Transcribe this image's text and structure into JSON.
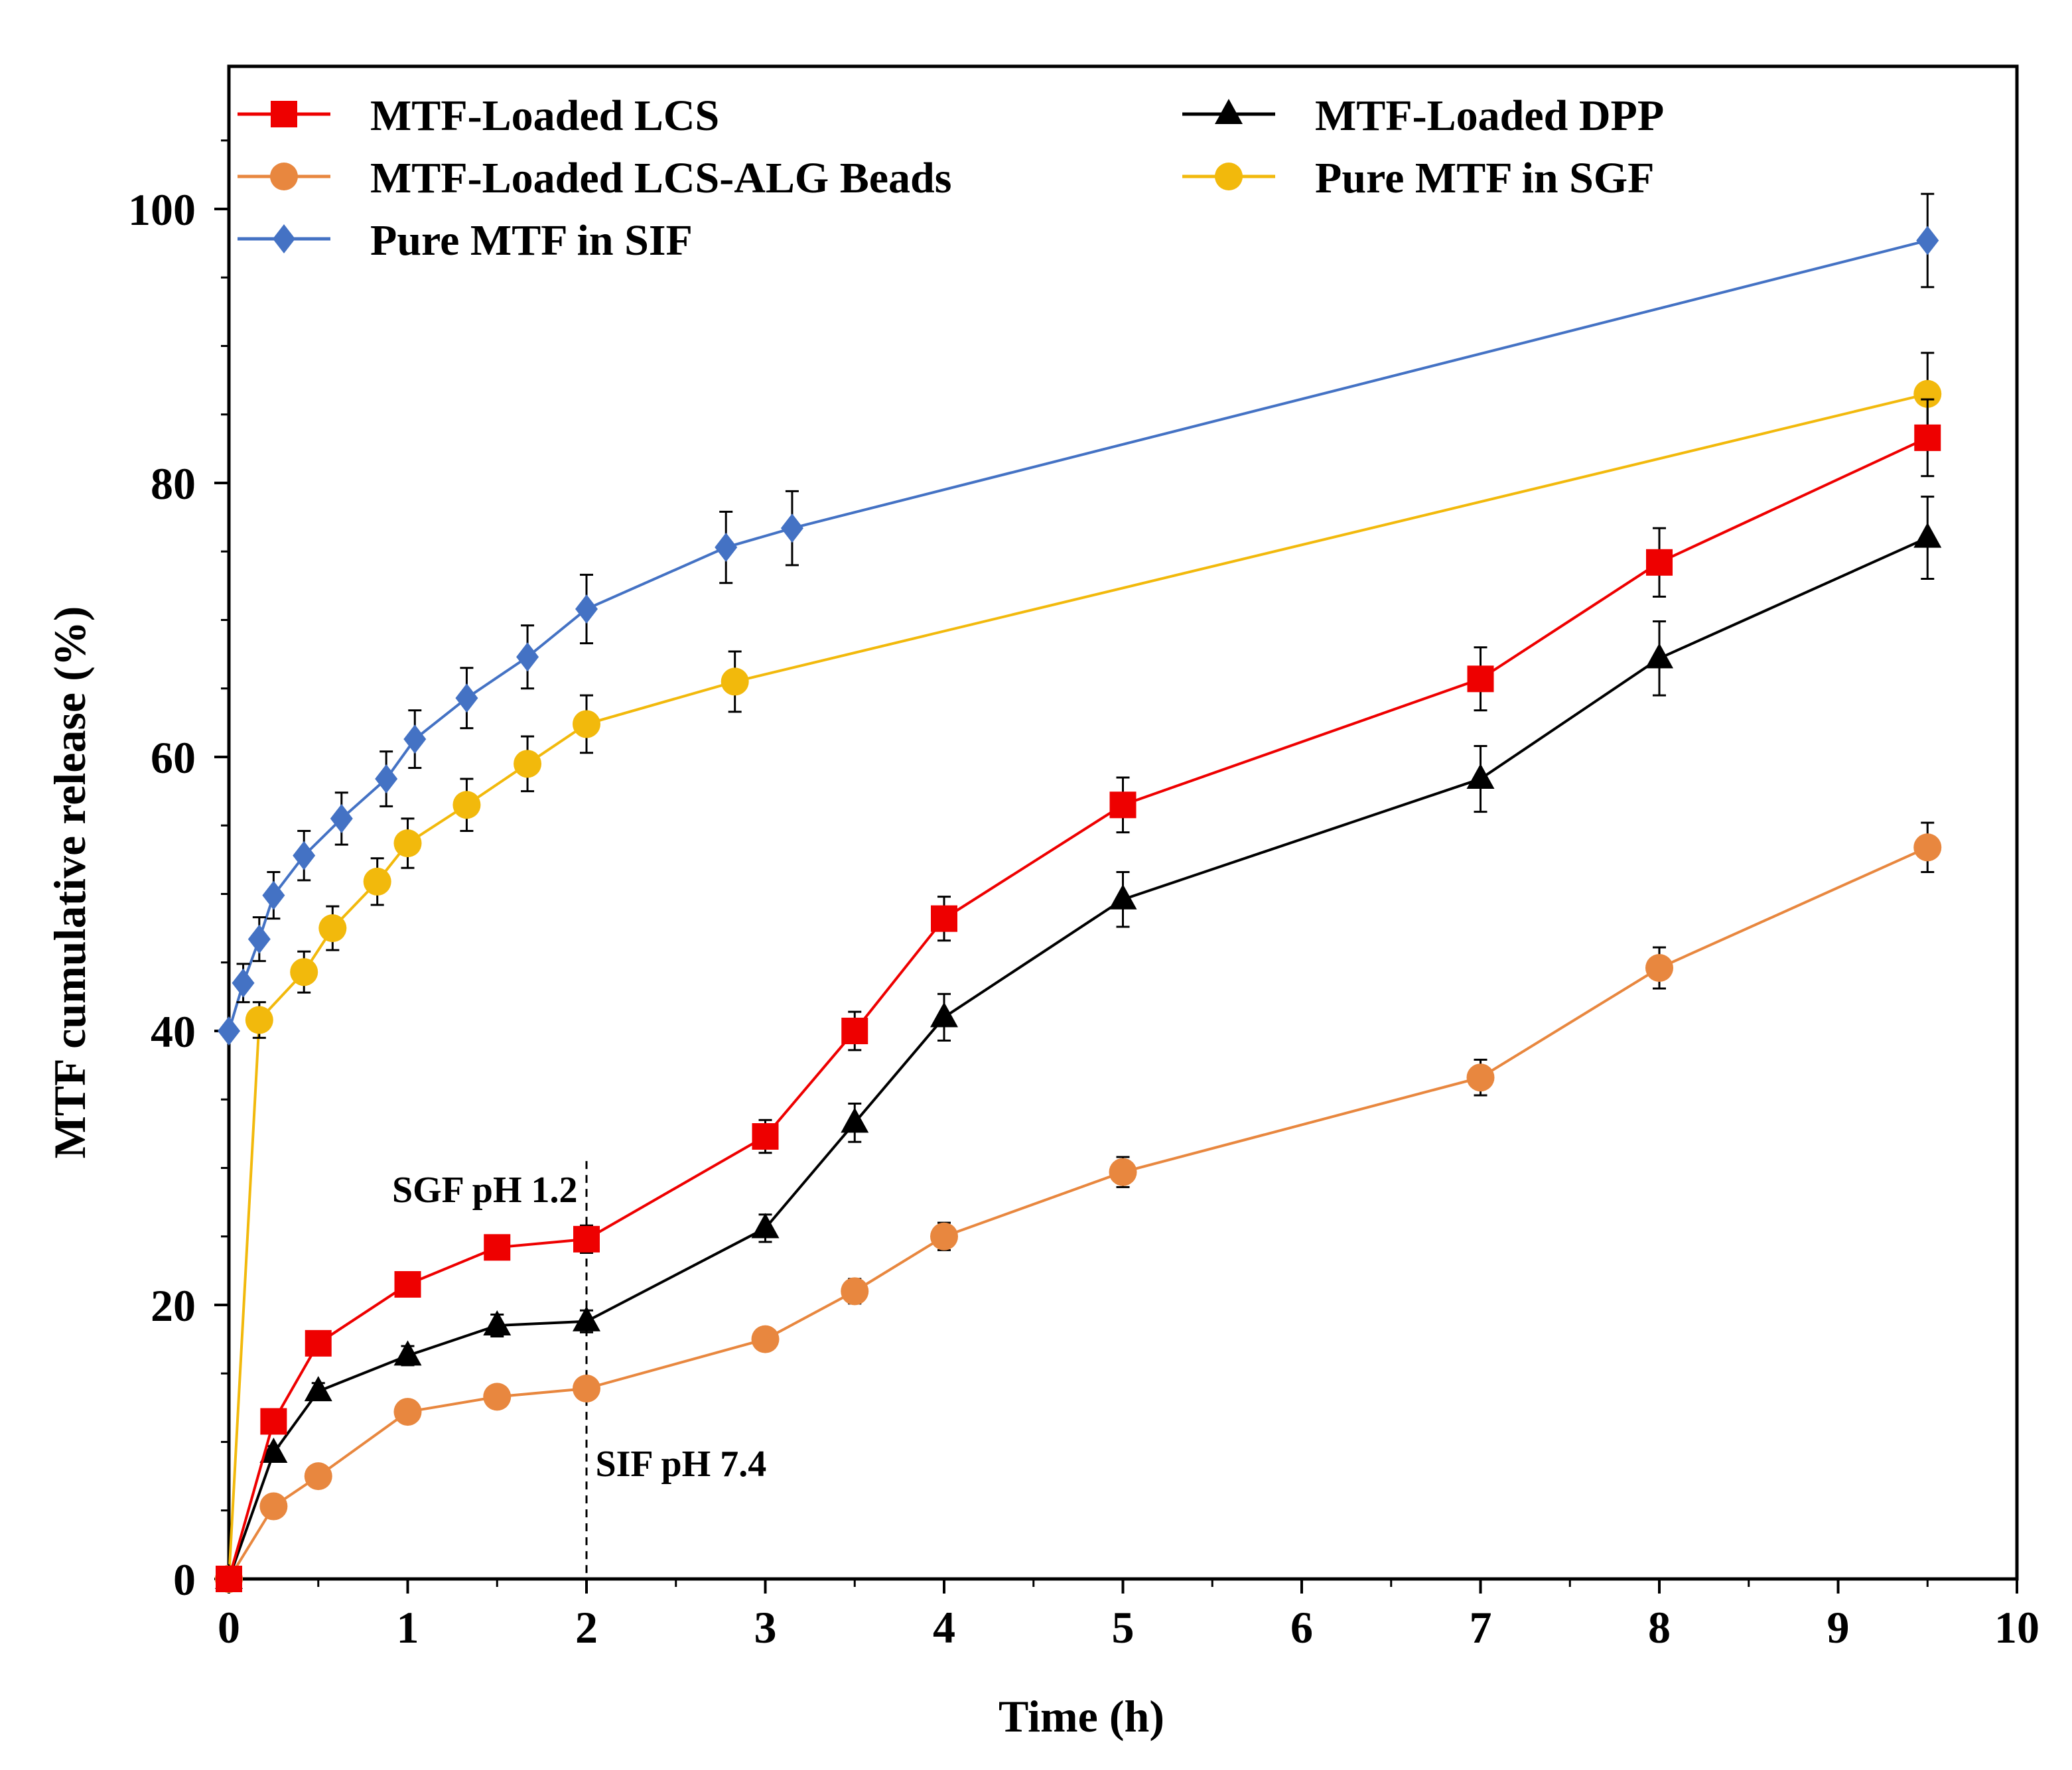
{
  "chart_data": {
    "type": "line",
    "title": "",
    "xlabel": "Time (h)",
    "ylabel": "MTF cumulative release (%)",
    "xlim": [
      0,
      10
    ],
    "ylim": [
      0,
      110
    ],
    "xticks": [
      0,
      1,
      2,
      3,
      4,
      5,
      6,
      7,
      8,
      9,
      10
    ],
    "yticks": [
      0,
      20,
      40,
      60,
      80,
      100
    ],
    "grid": false,
    "legend_position": "top",
    "series": [
      {
        "name": "MTF-Loaded LCS",
        "color": "#ee0000",
        "marker": "square",
        "x": [
          0,
          0.25,
          0.5,
          1,
          1.5,
          2,
          3,
          3.5,
          4,
          5,
          7,
          8,
          9.5
        ],
        "y": [
          0,
          11.5,
          17.2,
          21.5,
          24.2,
          24.8,
          32.3,
          40.0,
          48.2,
          56.5,
          65.7,
          74.2,
          83.3
        ],
        "err": [
          0,
          0.6,
          0.7,
          0.8,
          0.8,
          1.0,
          1.2,
          1.4,
          1.6,
          2.0,
          2.3,
          2.5,
          2.8
        ]
      },
      {
        "name": "MTF-Loaded DPP",
        "color": "#000000",
        "marker": "triangle",
        "x": [
          0,
          0.25,
          0.5,
          1,
          1.5,
          2,
          3,
          3.5,
          4,
          5,
          7,
          8,
          9.5
        ],
        "y": [
          0,
          9.2,
          13.7,
          16.3,
          18.5,
          18.8,
          25.6,
          33.3,
          41.0,
          49.6,
          58.4,
          67.2,
          76.0
        ],
        "err": [
          0,
          0.5,
          0.6,
          0.7,
          0.8,
          0.8,
          1.0,
          1.4,
          1.7,
          2.0,
          2.4,
          2.7,
          3.0
        ]
      },
      {
        "name": "MTF-Loaded LCS-ALG Beads",
        "color": "#e8873f",
        "marker": "circle",
        "x": [
          0,
          0.25,
          0.5,
          1,
          1.5,
          2,
          3,
          3.5,
          4,
          5,
          7,
          8,
          9.5
        ],
        "y": [
          0,
          5.3,
          7.5,
          12.2,
          13.3,
          13.9,
          17.5,
          21.0,
          25.0,
          29.7,
          36.6,
          44.6,
          53.4
        ],
        "err": [
          0,
          0.4,
          0.5,
          0.6,
          0.6,
          0.7,
          0.8,
          0.9,
          1.0,
          1.1,
          1.3,
          1.5,
          1.8
        ]
      },
      {
        "name": "Pure MTF in SGF",
        "color": "#f2b90c",
        "marker": "circle",
        "x": [
          0,
          0.17,
          0.42,
          0.58,
          0.83,
          1,
          1.33,
          1.67,
          2,
          2.83,
          9.5
        ],
        "y": [
          0,
          40.8,
          44.3,
          47.5,
          50.9,
          53.7,
          56.5,
          59.5,
          62.4,
          65.5,
          86.5
        ],
        "err": [
          0,
          1.3,
          1.5,
          1.6,
          1.7,
          1.8,
          1.9,
          2.0,
          2.1,
          2.2,
          3.0
        ]
      },
      {
        "name": "Pure MTF in SIF",
        "color": "#4472c4",
        "marker": "diamond",
        "x": [
          0,
          0.08,
          0.17,
          0.25,
          0.42,
          0.63,
          0.88,
          1.04,
          1.33,
          1.67,
          2,
          2.78,
          3.15,
          9.5
        ],
        "y": [
          40.0,
          43.5,
          46.7,
          49.9,
          52.8,
          55.5,
          58.4,
          61.3,
          64.3,
          67.3,
          70.8,
          75.3,
          76.7,
          97.7
        ],
        "err": [
          0,
          1.4,
          1.6,
          1.7,
          1.8,
          1.9,
          2.0,
          2.1,
          2.2,
          2.3,
          2.5,
          2.6,
          2.7,
          3.4
        ]
      }
    ],
    "annotations": [
      {
        "text": "SGF pH 1.2",
        "x": 1.95,
        "y": 27.5,
        "anchor": "end"
      },
      {
        "text": "SIF pH 7.4",
        "x": 2.05,
        "y": 7.5,
        "anchor": "start"
      }
    ],
    "divider_x": 2
  }
}
